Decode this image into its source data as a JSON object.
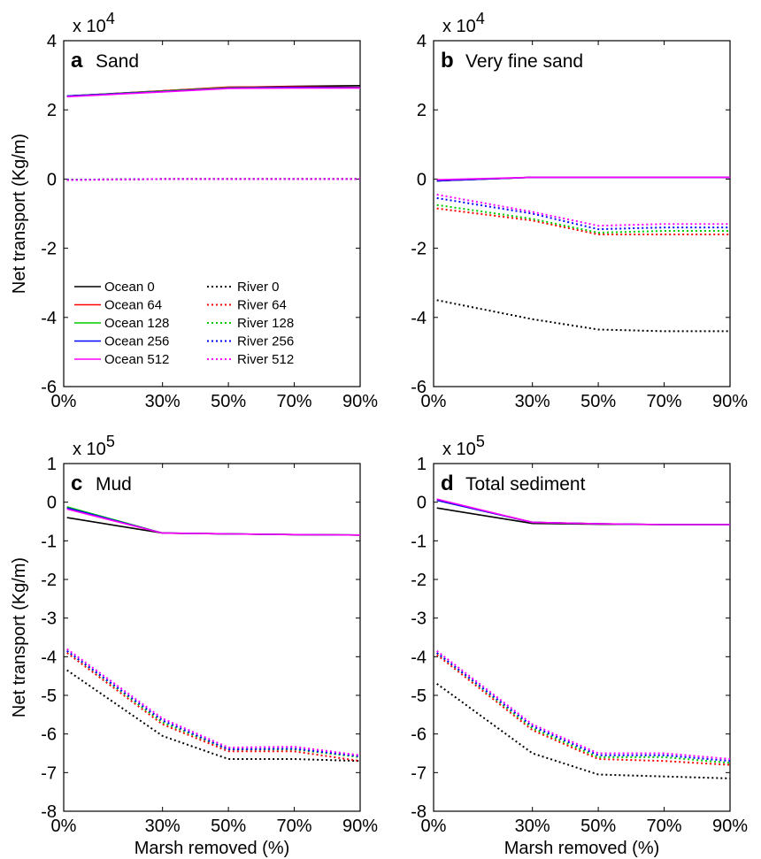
{
  "chart_data": [
    {
      "type": "line",
      "letter": "a",
      "title": "Sand",
      "ylabel": "Net transport (Kg/m)",
      "xlabel": "",
      "exponent_label": "x 10",
      "exponent_power": "4",
      "xlim": [
        0,
        90
      ],
      "ylim": [
        -6,
        4
      ],
      "xticks": [
        0,
        30,
        50,
        70,
        90
      ],
      "xtick_labels": [
        "0%",
        "30%",
        "50%",
        "70%",
        "90%"
      ],
      "yticks": [
        -6,
        -4,
        -2,
        0,
        2,
        4
      ],
      "ytick_labels": [
        "-6",
        "-4",
        "-2",
        "0",
        "2",
        "4"
      ],
      "x": [
        1,
        30,
        50,
        70,
        90
      ],
      "series": [
        {
          "name": "Ocean 0",
          "color": "#000000",
          "style": "solid",
          "values": [
            2.4,
            2.55,
            2.65,
            2.68,
            2.7
          ]
        },
        {
          "name": "Ocean 64",
          "color": "#ff0000",
          "style": "solid",
          "values": [
            2.4,
            2.55,
            2.66,
            2.67,
            2.65
          ]
        },
        {
          "name": "Ocean 128",
          "color": "#00cc00",
          "style": "solid",
          "values": [
            2.4,
            2.54,
            2.64,
            2.65,
            2.64
          ]
        },
        {
          "name": "Ocean 256",
          "color": "#0000ff",
          "style": "solid",
          "values": [
            2.4,
            2.53,
            2.63,
            2.65,
            2.64
          ]
        },
        {
          "name": "Ocean 512",
          "color": "#ff00ff",
          "style": "solid",
          "values": [
            2.38,
            2.52,
            2.62,
            2.63,
            2.63
          ]
        },
        {
          "name": "River 0",
          "color": "#000000",
          "style": "dotted",
          "values": [
            -0.02,
            0.0,
            0.0,
            0.0,
            0.0
          ]
        },
        {
          "name": "River 64",
          "color": "#ff0000",
          "style": "dotted",
          "values": [
            -0.02,
            0.0,
            0.0,
            0.0,
            0.0
          ]
        },
        {
          "name": "River 128",
          "color": "#00cc00",
          "style": "dotted",
          "values": [
            -0.02,
            0.0,
            0.0,
            0.0,
            0.0
          ]
        },
        {
          "name": "River 256",
          "color": "#0000ff",
          "style": "dotted",
          "values": [
            -0.02,
            0.0,
            0.0,
            0.0,
            0.0
          ]
        },
        {
          "name": "River 512",
          "color": "#ff00ff",
          "style": "dotted",
          "values": [
            -0.03,
            0.0,
            0.0,
            0.0,
            0.0
          ]
        }
      ],
      "legend": true,
      "legend_placement": "lower-left"
    },
    {
      "type": "line",
      "letter": "b",
      "title": "Very fine sand",
      "ylabel": "",
      "xlabel": "",
      "exponent_label": "x 10",
      "exponent_power": "4",
      "xlim": [
        0,
        90
      ],
      "ylim": [
        -6,
        4
      ],
      "xticks": [
        0,
        30,
        50,
        70,
        90
      ],
      "xtick_labels": [
        "0%",
        "30%",
        "50%",
        "70%",
        "90%"
      ],
      "yticks": [
        -6,
        -4,
        -2,
        0,
        2,
        4
      ],
      "ytick_labels": [
        "-6",
        "-4",
        "-2",
        "0",
        "2",
        "4"
      ],
      "x": [
        1,
        30,
        50,
        70,
        90
      ],
      "series": [
        {
          "name": "Ocean 0",
          "color": "#000000",
          "style": "solid",
          "values": [
            -0.05,
            0.05,
            0.05,
            0.05,
            0.05
          ]
        },
        {
          "name": "Ocean 64",
          "color": "#ff0000",
          "style": "solid",
          "values": [
            -0.05,
            0.05,
            0.05,
            0.05,
            0.05
          ]
        },
        {
          "name": "Ocean 128",
          "color": "#00cc00",
          "style": "solid",
          "values": [
            -0.05,
            0.05,
            0.05,
            0.05,
            0.05
          ]
        },
        {
          "name": "Ocean 256",
          "color": "#0000ff",
          "style": "solid",
          "values": [
            -0.05,
            0.05,
            0.05,
            0.05,
            0.05
          ]
        },
        {
          "name": "Ocean 512",
          "color": "#ff00ff",
          "style": "solid",
          "values": [
            -0.02,
            0.05,
            0.05,
            0.05,
            0.05
          ]
        },
        {
          "name": "River 0",
          "color": "#000000",
          "style": "dotted",
          "values": [
            -3.5,
            -4.05,
            -4.35,
            -4.4,
            -4.4
          ]
        },
        {
          "name": "River 64",
          "color": "#ff0000",
          "style": "dotted",
          "values": [
            -0.85,
            -1.2,
            -1.6,
            -1.6,
            -1.6
          ]
        },
        {
          "name": "River 128",
          "color": "#00cc00",
          "style": "dotted",
          "values": [
            -0.75,
            -1.15,
            -1.55,
            -1.5,
            -1.5
          ]
        },
        {
          "name": "River 256",
          "color": "#0000ff",
          "style": "dotted",
          "values": [
            -0.55,
            -1.0,
            -1.45,
            -1.4,
            -1.4
          ]
        },
        {
          "name": "River 512",
          "color": "#ff00ff",
          "style": "dotted",
          "values": [
            -0.45,
            -0.95,
            -1.35,
            -1.3,
            -1.3
          ]
        }
      ],
      "legend": false
    },
    {
      "type": "line",
      "letter": "c",
      "title": "Mud",
      "ylabel": "Net transport (Kg/m)",
      "xlabel": "Marsh removed (%)",
      "exponent_label": "x 10",
      "exponent_power": "5",
      "xlim": [
        0,
        90
      ],
      "ylim": [
        -8,
        1
      ],
      "xticks": [
        0,
        30,
        50,
        70,
        90
      ],
      "xtick_labels": [
        "0%",
        "30%",
        "50%",
        "70%",
        "90%"
      ],
      "yticks": [
        -8,
        -7,
        -6,
        -5,
        -4,
        -3,
        -2,
        -1,
        0,
        1
      ],
      "ytick_labels": [
        "-8",
        "-7",
        "-6",
        "-5",
        "-4",
        "-3",
        "-2",
        "-1",
        "0",
        "1"
      ],
      "x": [
        1,
        30,
        50,
        70,
        90
      ],
      "series": [
        {
          "name": "Ocean 0",
          "color": "#000000",
          "style": "solid",
          "values": [
            -0.4,
            -0.8,
            -0.82,
            -0.84,
            -0.85
          ]
        },
        {
          "name": "Ocean 64",
          "color": "#ff0000",
          "style": "solid",
          "values": [
            -0.15,
            -0.8,
            -0.82,
            -0.84,
            -0.85
          ]
        },
        {
          "name": "Ocean 128",
          "color": "#00cc00",
          "style": "solid",
          "values": [
            -0.12,
            -0.8,
            -0.82,
            -0.84,
            -0.85
          ]
        },
        {
          "name": "Ocean 256",
          "color": "#0000ff",
          "style": "solid",
          "values": [
            -0.15,
            -0.8,
            -0.82,
            -0.84,
            -0.85
          ]
        },
        {
          "name": "Ocean 512",
          "color": "#ff00ff",
          "style": "solid",
          "values": [
            -0.18,
            -0.8,
            -0.82,
            -0.84,
            -0.85
          ]
        },
        {
          "name": "River 0",
          "color": "#000000",
          "style": "dotted",
          "values": [
            -4.35,
            -6.05,
            -6.65,
            -6.65,
            -6.7
          ]
        },
        {
          "name": "River 64",
          "color": "#ff0000",
          "style": "dotted",
          "values": [
            -3.9,
            -5.75,
            -6.45,
            -6.45,
            -6.7
          ]
        },
        {
          "name": "River 128",
          "color": "#00cc00",
          "style": "dotted",
          "values": [
            -3.85,
            -5.7,
            -6.4,
            -6.4,
            -6.6
          ]
        },
        {
          "name": "River 256",
          "color": "#0000ff",
          "style": "dotted",
          "values": [
            -3.85,
            -5.65,
            -6.4,
            -6.38,
            -6.58
          ]
        },
        {
          "name": "River 512",
          "color": "#ff00ff",
          "style": "dotted",
          "values": [
            -3.8,
            -5.6,
            -6.35,
            -6.33,
            -6.55
          ]
        }
      ],
      "legend": false
    },
    {
      "type": "line",
      "letter": "d",
      "title": "Total sediment",
      "ylabel": "",
      "xlabel": "Marsh removed (%)",
      "exponent_label": "x 10",
      "exponent_power": "5",
      "xlim": [
        0,
        90
      ],
      "ylim": [
        -8,
        1
      ],
      "xticks": [
        0,
        30,
        50,
        70,
        90
      ],
      "xtick_labels": [
        "0%",
        "30%",
        "50%",
        "70%",
        "90%"
      ],
      "yticks": [
        -8,
        -7,
        -6,
        -5,
        -4,
        -3,
        -2,
        -1,
        0,
        1
      ],
      "ytick_labels": [
        "-8",
        "-7",
        "-6",
        "-5",
        "-4",
        "-3",
        "-2",
        "-1",
        "0",
        "1"
      ],
      "x": [
        1,
        30,
        50,
        70,
        90
      ],
      "series": [
        {
          "name": "Ocean 0",
          "color": "#000000",
          "style": "solid",
          "values": [
            -0.15,
            -0.55,
            -0.57,
            -0.58,
            -0.58
          ]
        },
        {
          "name": "Ocean 64",
          "color": "#ff0000",
          "style": "solid",
          "values": [
            0.05,
            -0.52,
            -0.56,
            -0.58,
            -0.58
          ]
        },
        {
          "name": "Ocean 128",
          "color": "#00cc00",
          "style": "solid",
          "values": [
            0.05,
            -0.52,
            -0.56,
            -0.58,
            -0.58
          ]
        },
        {
          "name": "Ocean 256",
          "color": "#0000ff",
          "style": "solid",
          "values": [
            0.05,
            -0.52,
            -0.56,
            -0.58,
            -0.58
          ]
        },
        {
          "name": "Ocean 512",
          "color": "#ff00ff",
          "style": "solid",
          "values": [
            0.08,
            -0.52,
            -0.56,
            -0.58,
            -0.58
          ]
        },
        {
          "name": "River 0",
          "color": "#000000",
          "style": "dotted",
          "values": [
            -4.7,
            -6.5,
            -7.05,
            -7.1,
            -7.15
          ]
        },
        {
          "name": "River 64",
          "color": "#ff0000",
          "style": "dotted",
          "values": [
            -3.95,
            -5.9,
            -6.65,
            -6.7,
            -6.8
          ]
        },
        {
          "name": "River 128",
          "color": "#00cc00",
          "style": "dotted",
          "values": [
            -3.9,
            -5.85,
            -6.6,
            -6.6,
            -6.75
          ]
        },
        {
          "name": "River 256",
          "color": "#0000ff",
          "style": "dotted",
          "values": [
            -3.9,
            -5.8,
            -6.55,
            -6.55,
            -6.7
          ]
        },
        {
          "name": "River 512",
          "color": "#ff00ff",
          "style": "dotted",
          "values": [
            -3.85,
            -5.75,
            -6.5,
            -6.5,
            -6.65
          ]
        }
      ],
      "legend": false
    }
  ]
}
